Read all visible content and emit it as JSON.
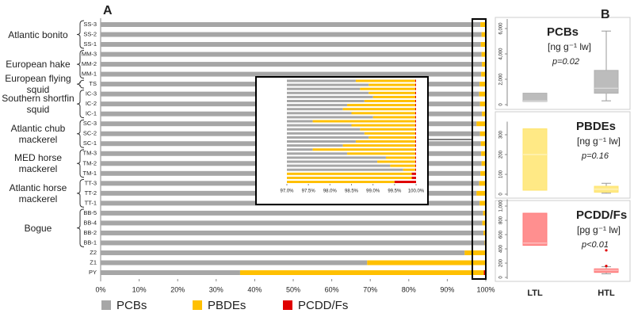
{
  "chart_data": [
    {
      "type": "stacked-bar-horizontal",
      "panel_label": "A",
      "categories": [
        "SS-3",
        "SS-2",
        "SS-1",
        "MM-3",
        "MM-2",
        "MM-1",
        "TS",
        "IC-3",
        "IC-2",
        "IC-1",
        "SC-3",
        "SC-2",
        "SC-1",
        "TM-3",
        "TM-2",
        "TM-1",
        "TT-3",
        "TT-2",
        "TT-1",
        "BB-5",
        "BB-4",
        "BB-2",
        "BB-1",
        "Z2",
        "Z1",
        "PY"
      ],
      "groups": [
        {
          "label": "Atlantic bonito",
          "count": 3
        },
        {
          "label": "European hake",
          "count": 3
        },
        {
          "label": "European flying squid",
          "count": 1
        },
        {
          "label": "Southern shortfin squid",
          "count": 3
        },
        {
          "label": "Atlantic chub mackerel",
          "count": 3
        },
        {
          "label": "MED horse mackerel",
          "count": 3
        },
        {
          "label": "Atlantic horse mackerel",
          "count": 3
        },
        {
          "label": "Bogue",
          "count": 4
        }
      ],
      "series": [
        {
          "name": "PCBs",
          "color": "#a6a6a6",
          "values": [
            98.6,
            98.9,
            98.7,
            98.9,
            99.0,
            98.8,
            98.4,
            98.3,
            98.5,
            99.0,
            97.6,
            98.5,
            98.7,
            98.8,
            98.9,
            98.6,
            98.3,
            97.6,
            98.4,
            99.3,
            99.1,
            99.4,
            99.7,
            94.5,
            69.2,
            36.2
          ]
        },
        {
          "name": "PBDEs",
          "color": "#ffc000",
          "values": [
            1.38,
            1.08,
            1.28,
            1.08,
            0.98,
            1.18,
            1.58,
            1.68,
            1.48,
            0.98,
            2.38,
            1.48,
            1.28,
            1.18,
            1.08,
            1.38,
            1.68,
            2.38,
            1.58,
            0.68,
            0.88,
            0.58,
            0.28,
            5.4,
            30.7,
            63.3
          ]
        },
        {
          "name": "PCDD/Fs",
          "color": "#e00000",
          "values": [
            0.02,
            0.02,
            0.02,
            0.02,
            0.02,
            0.02,
            0.02,
            0.02,
            0.02,
            0.02,
            0.02,
            0.02,
            0.02,
            0.02,
            0.02,
            0.02,
            0.02,
            0.02,
            0.02,
            0.02,
            0.02,
            0.02,
            0.02,
            0.1,
            0.1,
            0.5
          ]
        }
      ],
      "xlim": [
        0,
        100
      ],
      "xticks": [
        {
          "value": 0,
          "label": "0%"
        },
        {
          "value": 10,
          "label": "10%"
        },
        {
          "value": 20,
          "label": "20%"
        },
        {
          "value": 30,
          "label": "30%"
        },
        {
          "value": 40,
          "label": "40%"
        },
        {
          "value": 50,
          "label": "50%"
        },
        {
          "value": 60,
          "label": "60%"
        },
        {
          "value": 70,
          "label": "70%"
        },
        {
          "value": 80,
          "label": "80%"
        },
        {
          "value": 90,
          "label": "90%"
        },
        {
          "value": 100,
          "label": "100%"
        }
      ],
      "inset": {
        "xlim": [
          97,
          100
        ],
        "xticks": [
          {
            "value": 97,
            "label": "97.0%"
          },
          {
            "value": 97.5,
            "label": "97.5%"
          },
          {
            "value": 98,
            "label": "98.0%"
          },
          {
            "value": 98.5,
            "label": "98.5%"
          },
          {
            "value": 99,
            "label": "99.0%"
          },
          {
            "value": 99.5,
            "label": "99.5%"
          },
          {
            "value": 100,
            "label": "100.0%"
          }
        ]
      }
    },
    {
      "type": "box",
      "panel_label": "B",
      "title": "PCBs",
      "units": "[ng g⁻¹ lw]",
      "annotation": "p=0.02",
      "color": "#b0b0b0",
      "ylim": [
        0,
        6500
      ],
      "yticks": [
        0,
        {
          "value": 2000,
          "label": "2,000"
        },
        {
          "value": 4000,
          "label": "4,000"
        },
        {
          "value": 6000,
          "label": "6,000"
        }
      ],
      "boxes": [
        {
          "q1": 250,
          "median": 300,
          "q3": 900
        },
        {
          "min": 300,
          "q1": 900,
          "median": 1300,
          "q3": 2700,
          "max": 5800
        }
      ]
    },
    {
      "type": "box",
      "title": "PBDEs",
      "units": "[ng g⁻¹ lw]",
      "annotation": "p=0.16",
      "color": "#ffe570",
      "ylim": [
        0,
        350
      ],
      "yticks": [
        0,
        100,
        200,
        300
      ],
      "boxes": [
        {
          "q1": 20,
          "median": 200,
          "q3": 330
        },
        {
          "min": 5,
          "q1": 10,
          "median": 25,
          "q3": 40,
          "max": 55
        }
      ]
    },
    {
      "type": "box",
      "title": "PCDD/Fs",
      "units": "[pg g⁻¹ lw]",
      "annotation": "p<0.01",
      "color": "#ff7b7b",
      "ylim": [
        0,
        1050
      ],
      "yticks": [
        0,
        200,
        400,
        600,
        800,
        {
          "value": 1000,
          "label": "1,000"
        }
      ],
      "categories": [
        "LTL",
        "HTL"
      ],
      "boxes": [
        {
          "q1": 450,
          "median": 480,
          "q3": 900
        },
        {
          "min": 50,
          "q1": 70,
          "median": 100,
          "q3": 120,
          "max": 150,
          "outliers": [
            160,
            380
          ]
        }
      ]
    }
  ]
}
